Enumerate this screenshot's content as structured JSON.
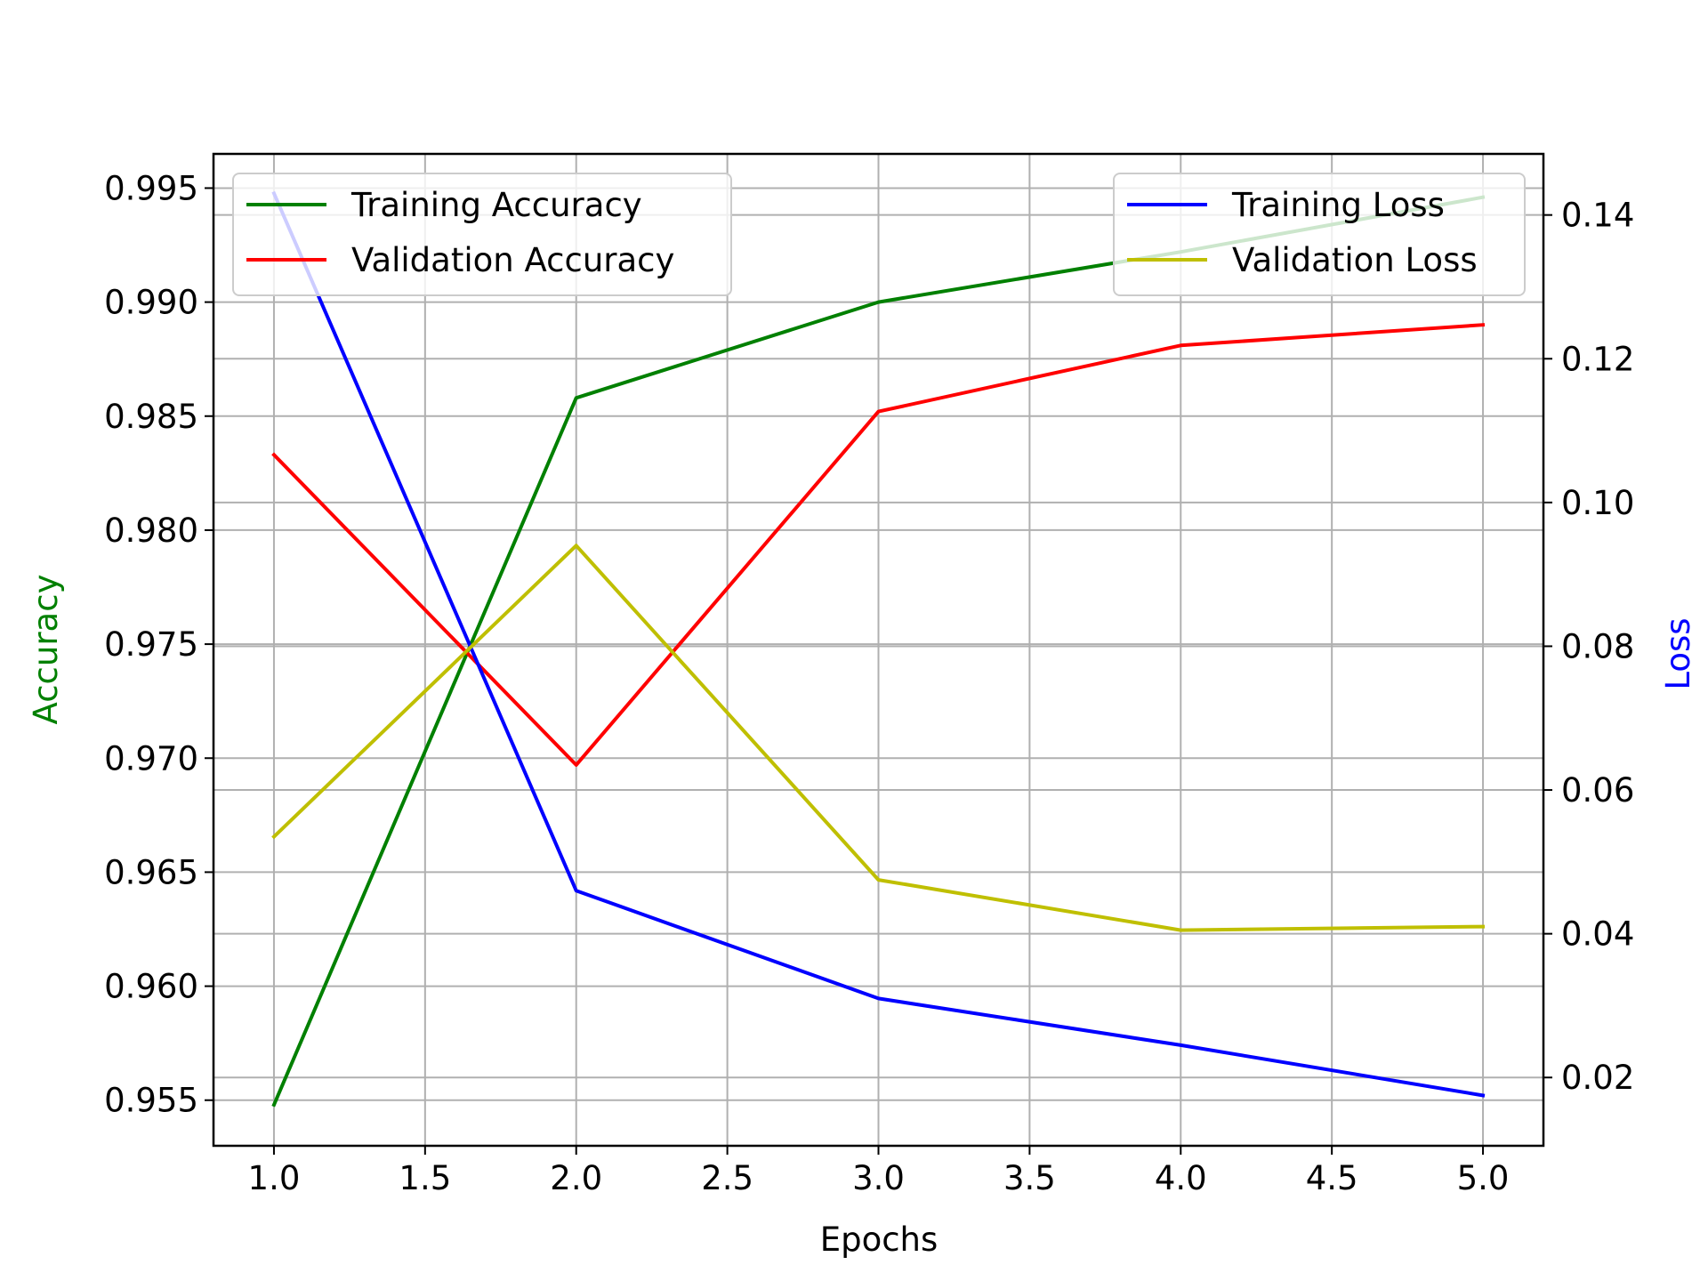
{
  "chart_data": {
    "type": "line",
    "title": "",
    "xlabel": "Epochs",
    "ylabel_left": "Accuracy",
    "ylabel_right": "Loss",
    "ylabel_left_color": "#008000",
    "ylabel_right_color": "#0000ff",
    "grid": true,
    "x": [
      1,
      2,
      3,
      4,
      5
    ],
    "xlim": [
      0.8,
      5.2
    ],
    "ylim_left": [
      0.953,
      0.9965
    ],
    "ylim_right": [
      0.0105,
      0.1485
    ],
    "x_ticks": [
      "1.0",
      "1.5",
      "2.0",
      "2.5",
      "3.0",
      "3.5",
      "4.0",
      "4.5",
      "5.0"
    ],
    "y_left_ticks": [
      "0.955",
      "0.960",
      "0.965",
      "0.970",
      "0.975",
      "0.980",
      "0.985",
      "0.990",
      "0.995"
    ],
    "y_right_ticks": [
      "0.02",
      "0.04",
      "0.06",
      "0.08",
      "0.10",
      "0.12",
      "0.14"
    ],
    "series_left": [
      {
        "name": "Training Accuracy",
        "color": "#008000",
        "values": [
          0.9548,
          0.9858,
          0.99,
          0.9922,
          0.9946
        ]
      },
      {
        "name": "Validation Accuracy",
        "color": "#ff0000",
        "values": [
          0.9833,
          0.9697,
          0.9852,
          0.9881,
          0.989
        ]
      }
    ],
    "series_right": [
      {
        "name": "Training Loss",
        "color": "#0000ff",
        "values": [
          0.143,
          0.046,
          0.031,
          0.0245,
          0.0175
        ]
      },
      {
        "name": "Validation Loss",
        "color": "#bfbf00",
        "values": [
          0.0535,
          0.094,
          0.0475,
          0.0405,
          0.041
        ]
      }
    ],
    "legend_left_position": "upper-left",
    "legend_right_position": "upper-right"
  }
}
